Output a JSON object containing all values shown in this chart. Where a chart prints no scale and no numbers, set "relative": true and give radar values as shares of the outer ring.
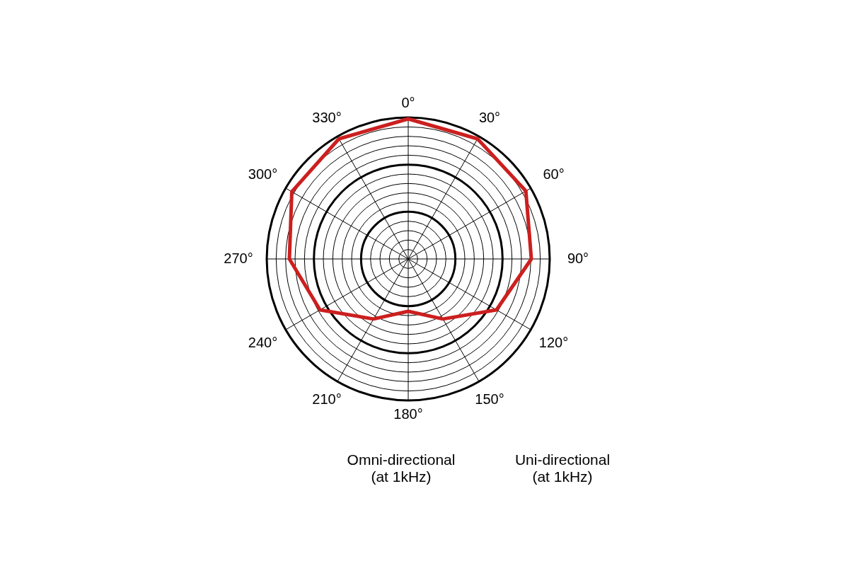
{
  "chart_data": {
    "type": "radar",
    "relative": true,
    "grid": true,
    "legend": false,
    "categories": [
      "0°",
      "30°",
      "60°",
      "90°",
      "120°",
      "150°",
      "180°",
      "210°",
      "240°",
      "270°",
      "300°",
      "330°"
    ],
    "series": [
      {
        "color": "#cc1f1f",
        "values": [
          0.99,
          0.98,
          0.96,
          0.87,
          0.72,
          0.49,
          0.37,
          0.49,
          0.72,
          0.84,
          0.95,
          0.98
        ]
      }
    ],
    "annotations": [
      "Omni-directional\n(at 1kHz)",
      "Uni-directional\n(at 1kHz)"
    ]
  }
}
